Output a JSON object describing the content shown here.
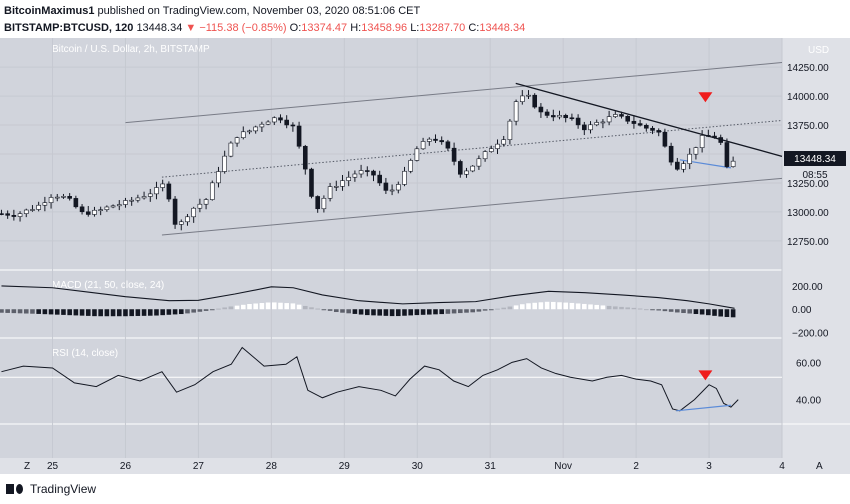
{
  "header": {
    "author": "BitcoinMaximus1",
    "publish_text": "published on TradingView.com, November 03, 2020 08:51:06 CET",
    "symbol_line": "BITSTAMP:BTCUSD, 120",
    "last": "13448.34",
    "change": "▼ −115.38 (−0.85%)",
    "o_label": "O:",
    "o_value": "13374.47",
    "h_label": "H:",
    "h_value": "13458.96",
    "l_label": "L:",
    "l_value": "13287.70",
    "c_label": "C:",
    "c_value": "13448.34"
  },
  "chart": {
    "title": "Bitcoin / U.S. Dollar, 2h, BITSTAMP",
    "currency": "USD",
    "price_badge": "13448.34",
    "countdown": "08:55",
    "macd_label": "MACD (21, 50, close, 24)",
    "rsi_label": "RSI (14, close)",
    "corner_left": "Z",
    "corner_right": "A",
    "colors": {
      "bg": "#d1d4dc",
      "axis_bg": "#dfe1e7",
      "candle_up": "#ffffff",
      "candle_down": "#131722",
      "channel": "#787b86",
      "resistance": "#131722",
      "divergence": "#5b8bd8",
      "signal": "#ef1c1c"
    }
  },
  "footer": {
    "brand": "TradingView"
  },
  "chart_data": [
    {
      "type": "candlestick",
      "title": "Bitcoin / U.S. Dollar, 2h, BITSTAMP",
      "ylabel": "USD",
      "x_ticks": [
        "25",
        "26",
        "27",
        "28",
        "29",
        "30",
        "31",
        "Nov",
        "2",
        "3",
        "4"
      ],
      "y_ticks": [
        12750,
        13000,
        13250,
        13500,
        13750,
        14000,
        14250
      ],
      "ylim": [
        12550,
        14450
      ],
      "xlim": [
        24.28,
        35.0
      ],
      "last_price": 13448.34,
      "close_path": [
        [
          24.3,
          12985
        ],
        [
          24.5,
          12975
        ],
        [
          24.8,
          13050
        ],
        [
          25.0,
          13150
        ],
        [
          25.2,
          13120
        ],
        [
          25.4,
          12990
        ],
        [
          25.6,
          13000
        ],
        [
          25.8,
          13050
        ],
        [
          26.0,
          13080
        ],
        [
          26.2,
          13130
        ],
        [
          26.4,
          13180
        ],
        [
          26.55,
          13250
        ],
        [
          26.7,
          12850
        ],
        [
          26.9,
          13020
        ],
        [
          27.1,
          13100
        ],
        [
          27.3,
          13400
        ],
        [
          27.5,
          13650
        ],
        [
          27.7,
          13700
        ],
        [
          27.9,
          13780
        ],
        [
          28.1,
          13820
        ],
        [
          28.3,
          13730
        ],
        [
          28.5,
          13300
        ],
        [
          28.6,
          13000
        ],
        [
          28.8,
          13200
        ],
        [
          29.0,
          13280
        ],
        [
          29.2,
          13350
        ],
        [
          29.4,
          13320
        ],
        [
          29.6,
          13150
        ],
        [
          29.8,
          13300
        ],
        [
          30.0,
          13550
        ],
        [
          30.2,
          13650
        ],
        [
          30.4,
          13560
        ],
        [
          30.6,
          13330
        ],
        [
          30.8,
          13420
        ],
        [
          31.0,
          13550
        ],
        [
          31.2,
          13650
        ],
        [
          31.35,
          13950
        ],
        [
          31.5,
          14010
        ],
        [
          31.7,
          13850
        ],
        [
          31.9,
          13830
        ],
        [
          32.1,
          13800
        ],
        [
          32.3,
          13720
        ],
        [
          32.5,
          13780
        ],
        [
          32.7,
          13830
        ],
        [
          32.9,
          13790
        ],
        [
          33.1,
          13730
        ],
        [
          33.3,
          13700
        ],
        [
          33.45,
          13480
        ],
        [
          33.55,
          13380
        ],
        [
          33.7,
          13460
        ],
        [
          33.9,
          13640
        ],
        [
          34.05,
          13660
        ],
        [
          34.15,
          13620
        ],
        [
          34.25,
          13360
        ],
        [
          34.35,
          13448.34
        ]
      ],
      "annotations": [
        {
          "kind": "ascending-channel",
          "start": [
            26.5,
            13300
          ],
          "end": [
            35.0,
            13790
          ],
          "offset": 500
        },
        {
          "kind": "descending-resistance",
          "start": [
            31.35,
            14110
          ],
          "end": [
            35.0,
            13480
          ]
        },
        {
          "kind": "bearish-divergence-line",
          "start": [
            33.6,
            13450
          ],
          "end": [
            34.3,
            13380
          ]
        },
        {
          "kind": "signal-marker",
          "at": [
            33.95,
            13990
          ],
          "shape": "down-triangle"
        }
      ]
    },
    {
      "type": "bar",
      "title": "MACD (21, 50, close, 24)",
      "y_ticks": [
        200,
        0,
        -200
      ],
      "ylim": [
        -230,
        320
      ],
      "macd_line": [
        [
          24.3,
          260
        ],
        [
          25.0,
          240
        ],
        [
          25.5,
          190
        ],
        [
          26.0,
          140
        ],
        [
          26.6,
          95
        ],
        [
          27.0,
          100
        ],
        [
          27.5,
          170
        ],
        [
          28.0,
          250
        ],
        [
          28.3,
          240
        ],
        [
          28.7,
          160
        ],
        [
          29.2,
          95
        ],
        [
          29.8,
          60
        ],
        [
          30.3,
          75
        ],
        [
          30.8,
          85
        ],
        [
          31.3,
          150
        ],
        [
          31.8,
          200
        ],
        [
          32.3,
          185
        ],
        [
          32.8,
          160
        ],
        [
          33.3,
          130
        ],
        [
          33.7,
          95
        ],
        [
          34.0,
          60
        ],
        [
          34.35,
          10
        ]
      ],
      "histogram": [
        [
          24.3,
          -30
        ],
        [
          24.8,
          -40
        ],
        [
          25.2,
          -50
        ],
        [
          25.6,
          -60
        ],
        [
          26.0,
          -60
        ],
        [
          26.4,
          -55
        ],
        [
          26.8,
          -40
        ],
        [
          27.1,
          -15
        ],
        [
          27.4,
          20
        ],
        [
          27.7,
          45
        ],
        [
          28.0,
          60
        ],
        [
          28.3,
          50
        ],
        [
          28.6,
          10
        ],
        [
          28.9,
          -25
        ],
        [
          29.3,
          -50
        ],
        [
          29.7,
          -60
        ],
        [
          30.0,
          -50
        ],
        [
          30.4,
          -40
        ],
        [
          30.8,
          -25
        ],
        [
          31.2,
          15
        ],
        [
          31.5,
          50
        ],
        [
          31.8,
          65
        ],
        [
          32.1,
          55
        ],
        [
          32.4,
          40
        ],
        [
          32.7,
          25
        ],
        [
          33.0,
          10
        ],
        [
          33.3,
          -10
        ],
        [
          33.6,
          -30
        ],
        [
          33.9,
          -45
        ],
        [
          34.2,
          -65
        ],
        [
          34.35,
          -70
        ]
      ]
    },
    {
      "type": "line",
      "title": "RSI (14, close)",
      "y_ticks": [
        60,
        40
      ],
      "ylim": [
        28,
        72
      ],
      "upper_band": 52,
      "rsi": [
        [
          24.3,
          55
        ],
        [
          24.6,
          58
        ],
        [
          25.0,
          57
        ],
        [
          25.3,
          49
        ],
        [
          25.6,
          47
        ],
        [
          25.9,
          53
        ],
        [
          26.2,
          50
        ],
        [
          26.5,
          55
        ],
        [
          26.7,
          44
        ],
        [
          26.95,
          48
        ],
        [
          27.2,
          55
        ],
        [
          27.45,
          59
        ],
        [
          27.6,
          68
        ],
        [
          27.9,
          58
        ],
        [
          28.2,
          59
        ],
        [
          28.35,
          63
        ],
        [
          28.5,
          45
        ],
        [
          28.7,
          41
        ],
        [
          28.9,
          44
        ],
        [
          29.2,
          47
        ],
        [
          29.5,
          45
        ],
        [
          29.7,
          42
        ],
        [
          29.9,
          51
        ],
        [
          30.1,
          58
        ],
        [
          30.3,
          56
        ],
        [
          30.5,
          50
        ],
        [
          30.7,
          47
        ],
        [
          30.9,
          53
        ],
        [
          31.1,
          56
        ],
        [
          31.3,
          60
        ],
        [
          31.5,
          62
        ],
        [
          31.7,
          57
        ],
        [
          31.9,
          54
        ],
        [
          32.1,
          52
        ],
        [
          32.4,
          50
        ],
        [
          32.6,
          52
        ],
        [
          32.8,
          53
        ],
        [
          33.0,
          51
        ],
        [
          33.2,
          50
        ],
        [
          33.35,
          48
        ],
        [
          33.5,
          35
        ],
        [
          33.6,
          34
        ],
        [
          33.8,
          40
        ],
        [
          34.0,
          48
        ],
        [
          34.1,
          46
        ],
        [
          34.2,
          38
        ],
        [
          34.3,
          36
        ],
        [
          34.4,
          40
        ]
      ],
      "annotations": [
        {
          "kind": "bullish-divergence-line",
          "start": [
            33.55,
            34
          ],
          "end": [
            34.3,
            37
          ]
        },
        {
          "kind": "signal-marker",
          "at": [
            33.95,
            53
          ],
          "shape": "down-triangle"
        }
      ]
    }
  ]
}
